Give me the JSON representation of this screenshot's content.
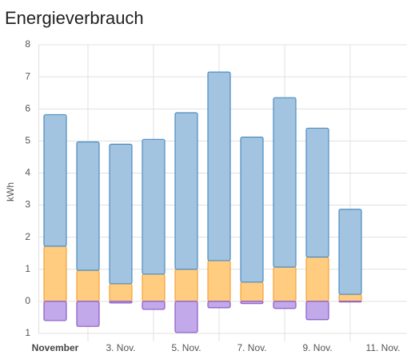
{
  "chart_data": {
    "type": "bar",
    "stacked": true,
    "title": "Energieverbrauch",
    "y_label": "kWh",
    "categories": [
      "November",
      null,
      "3. Nov.",
      null,
      "5. Nov.",
      null,
      "7. Nov.",
      null,
      "9. Nov.",
      null,
      "11. Nov."
    ],
    "series": [
      {
        "color": "#ffcc80",
        "stroke": "#f2a33a",
        "values": [
          1.72,
          0.97,
          0.55,
          0.85,
          1.0,
          1.27,
          0.6,
          1.07,
          1.38,
          0.22,
          null
        ]
      },
      {
        "color": "#a2c4e0",
        "stroke": "#4c8dc0",
        "values": [
          4.1,
          4.0,
          4.35,
          4.2,
          4.88,
          5.88,
          4.52,
          5.28,
          4.02,
          2.65,
          null
        ]
      },
      {
        "color": "#c2a9e9",
        "stroke": "#8b5cc9",
        "values": [
          -0.6,
          -0.78,
          -0.05,
          -0.25,
          -0.97,
          -0.2,
          -0.07,
          -0.22,
          -0.57,
          -0.02,
          null
        ]
      }
    ],
    "ylim": [
      -1,
      8
    ],
    "yticks": [
      {
        "value": -1,
        "label": "1"
      },
      0,
      1,
      2,
      3,
      4,
      5,
      6,
      7,
      8
    ],
    "grid": true
  }
}
